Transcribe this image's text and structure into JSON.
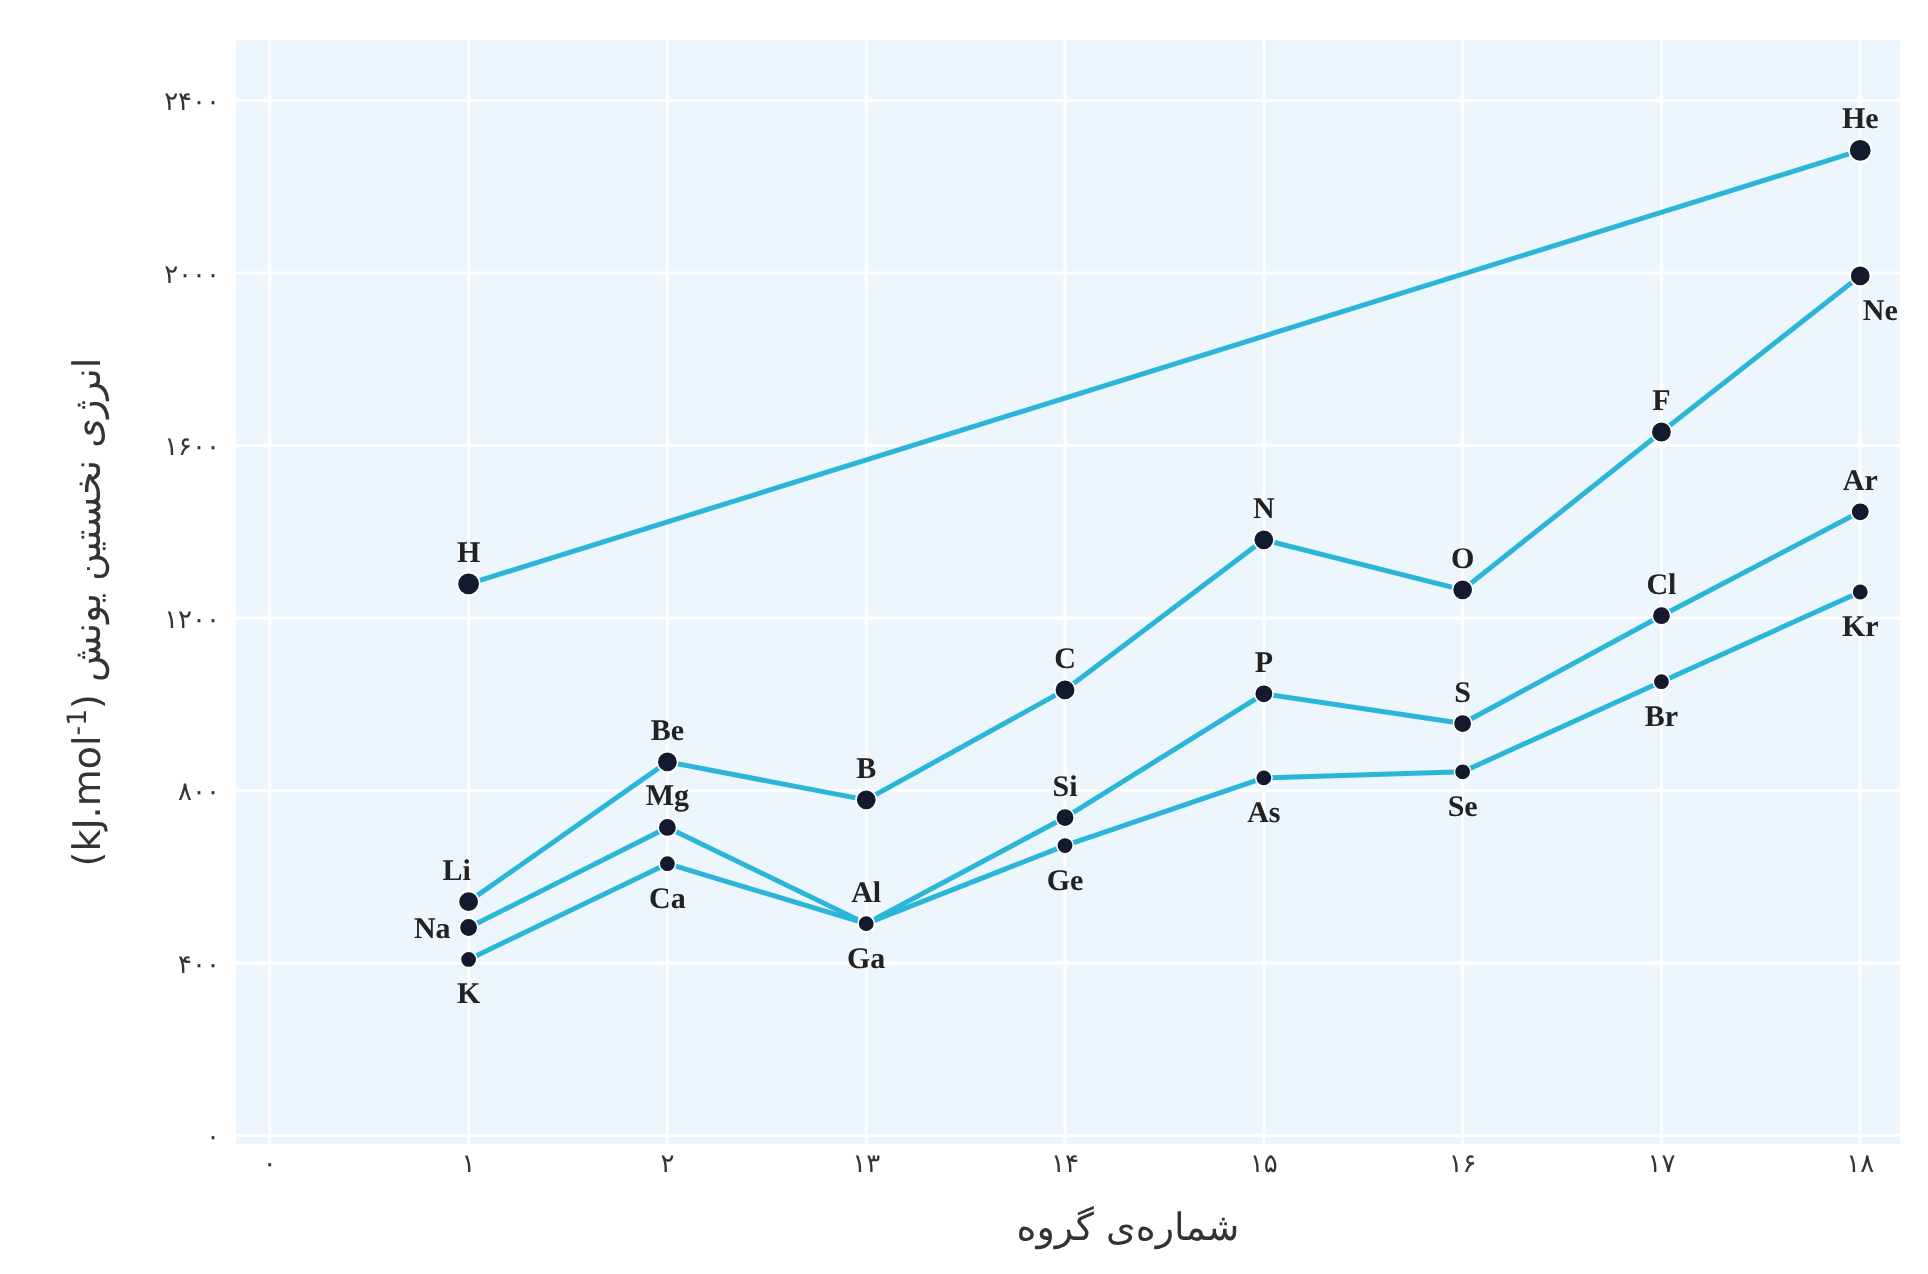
{
  "chart_data": {
    "type": "line",
    "xlabel": "شماره‌ی گروه",
    "ylabel": "انرژی نخستین یونش (kJ.mol$^{-1}$)",
    "categories": [
      "۰",
      "۱",
      "۲",
      "۱۳",
      "۱۴",
      "۱۵",
      "۱۶",
      "۱۷",
      "۱۸"
    ],
    "ylim": [
      -20,
      2540
    ],
    "yticks": [
      {
        "value": 0,
        "label": "۰"
      },
      {
        "value": 400,
        "label": "۴۰۰"
      },
      {
        "value": 800,
        "label": "۸۰۰"
      },
      {
        "value": 1200,
        "label": "۱۲۰۰"
      },
      {
        "value": 1600,
        "label": "۱۶۰۰"
      },
      {
        "value": 2000,
        "label": "۲۰۰۰"
      },
      {
        "value": 2400,
        "label": "۲۴۰۰"
      }
    ],
    "grid": true,
    "marker": "circle",
    "line_style": "solid",
    "series": [
      {
        "color": "#2bb5d8",
        "values": [
          null,
          1279,
          null,
          null,
          null,
          null,
          null,
          null,
          2284
        ]
      },
      {
        "color": "#2bb5d8",
        "values": [
          null,
          542,
          866,
          778,
          1033,
          1381,
          1265,
          1631,
          1993
        ]
      },
      {
        "color": "#2bb5d8",
        "values": [
          null,
          482,
          714,
          491,
          737,
          1024,
          955,
          1205,
          1446
        ]
      },
      {
        "color": "#2bb5d8",
        "values": [
          null,
          408,
          630,
          491,
          672,
          829,
          843,
          1052,
          1260
        ]
      }
    ],
    "annotations": [
      {
        "text": "H",
        "x": "۱",
        "y": 1279
      },
      {
        "text": "He",
        "x": "۱۸",
        "y": 2284
      },
      {
        "text": "Li",
        "x": "۱",
        "y": 542
      },
      {
        "text": "Be",
        "x": "۲",
        "y": 866
      },
      {
        "text": "B",
        "x": "۱۳",
        "y": 778
      },
      {
        "text": "C",
        "x": "۱۴",
        "y": 1033
      },
      {
        "text": "N",
        "x": "۱۵",
        "y": 1381
      },
      {
        "text": "O",
        "x": "۱۶",
        "y": 1265
      },
      {
        "text": "F",
        "x": "۱۷",
        "y": 1631
      },
      {
        "text": "Ne",
        "x": "۱۸",
        "y": 1993
      },
      {
        "text": "Na",
        "x": "۱",
        "y": 482
      },
      {
        "text": "Mg",
        "x": "۲",
        "y": 714
      },
      {
        "text": "Al",
        "x": "۱۳",
        "y": 491
      },
      {
        "text": "Si",
        "x": "۱۴",
        "y": 737
      },
      {
        "text": "P",
        "x": "۱۵",
        "y": 1024
      },
      {
        "text": "S",
        "x": "۱۶",
        "y": 955
      },
      {
        "text": "Cl",
        "x": "۱۷",
        "y": 1205
      },
      {
        "text": "Ar",
        "x": "۱۸",
        "y": 1446
      },
      {
        "text": "K",
        "x": "۱",
        "y": 408
      },
      {
        "text": "Ca",
        "x": "۲",
        "y": 630
      },
      {
        "text": "Ga",
        "x": "۱۳",
        "y": 491
      },
      {
        "text": "Ge",
        "x": "۱۴",
        "y": 672
      },
      {
        "text": "As",
        "x": "۱۵",
        "y": 829
      },
      {
        "text": "Se",
        "x": "۱۶",
        "y": 843
      },
      {
        "text": "Br",
        "x": "۱۷",
        "y": 1052
      },
      {
        "text": "Kr",
        "x": "۱۸",
        "y": 1260
      }
    ]
  }
}
